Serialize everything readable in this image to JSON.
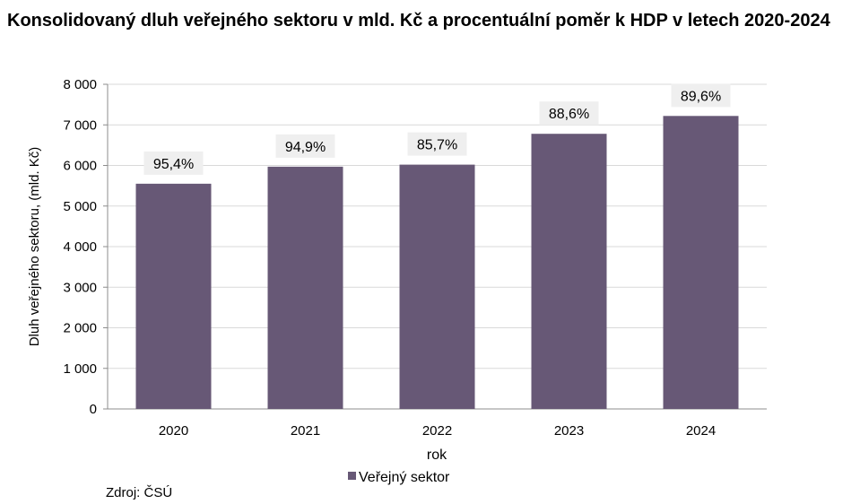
{
  "chart_data": {
    "type": "bar",
    "title": "Konsolidovaný dluh veřejného sektoru v mld. Kč a procentuální poměr k HDP v letech 2020-2024",
    "categories": [
      "2020",
      "2021",
      "2022",
      "2023",
      "2024"
    ],
    "series": [
      {
        "name": "Veřejný sektor",
        "values": [
          5550,
          5970,
          6020,
          6780,
          7220
        ]
      }
    ],
    "data_labels": [
      "95,4%",
      "94,9%",
      "85,7%",
      "88,6%",
      "89,6%"
    ],
    "xlabel": "rok",
    "ylabel": "Dluh veřejného sektoru, (mld. Kč)",
    "ylim": [
      0,
      8000
    ],
    "yticks": [
      0,
      1000,
      2000,
      3000,
      4000,
      5000,
      6000,
      7000,
      8000
    ],
    "ytick_labels": [
      "0",
      "1 000",
      "2 000",
      "3 000",
      "4 000",
      "5 000",
      "6 000",
      "7 000",
      "8 000"
    ],
    "grid": true,
    "legend_position": "bottom",
    "colors": {
      "bar": "#675876",
      "grid": "#d9d9d9",
      "label_bg": "#efefef"
    }
  },
  "source": "Zdroj: ČSÚ"
}
